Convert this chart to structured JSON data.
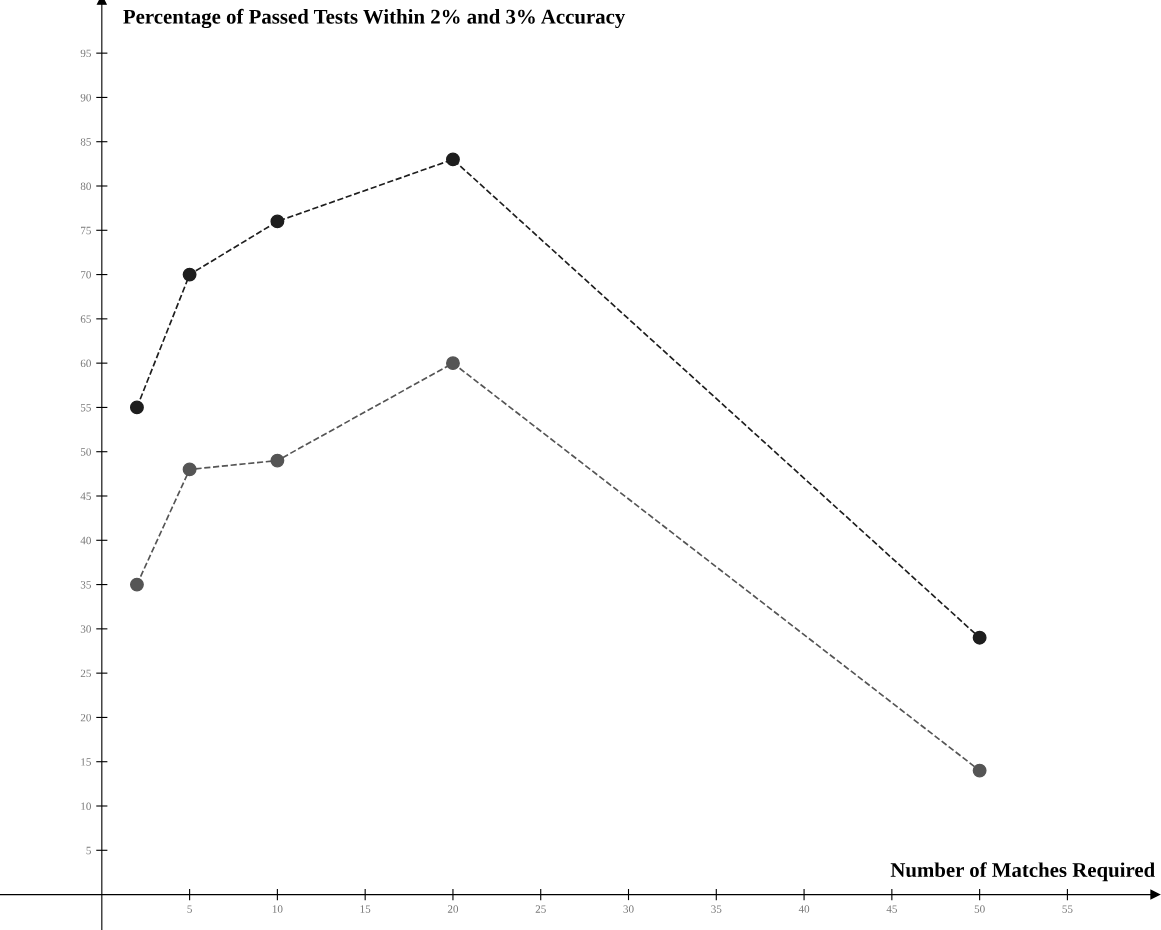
{
  "chart_data": {
    "type": "line",
    "title": "Percentage of Passed Tests Within 2% and 3% Accuracy",
    "xlabel": "Number of Matches Required",
    "x": [
      2,
      5,
      10,
      20,
      50
    ],
    "series": [
      {
        "color": "#1e1e1e",
        "values": [
          55,
          70,
          76,
          83,
          29
        ]
      },
      {
        "color": "#555555",
        "values": [
          35,
          48,
          49,
          60,
          14
        ]
      }
    ],
    "xlim": [
      -5.8,
      60
    ],
    "ylim": [
      -4,
      101
    ],
    "xticks": [
      5,
      10,
      15,
      20,
      25,
      30,
      35,
      40,
      45,
      50,
      55
    ],
    "yticks": [
      5,
      10,
      15,
      20,
      25,
      30,
      35,
      40,
      45,
      50,
      55,
      60,
      65,
      70,
      75,
      80,
      85,
      90,
      95
    ],
    "grid": false,
    "marker": "circle",
    "line_style": "dashed"
  }
}
